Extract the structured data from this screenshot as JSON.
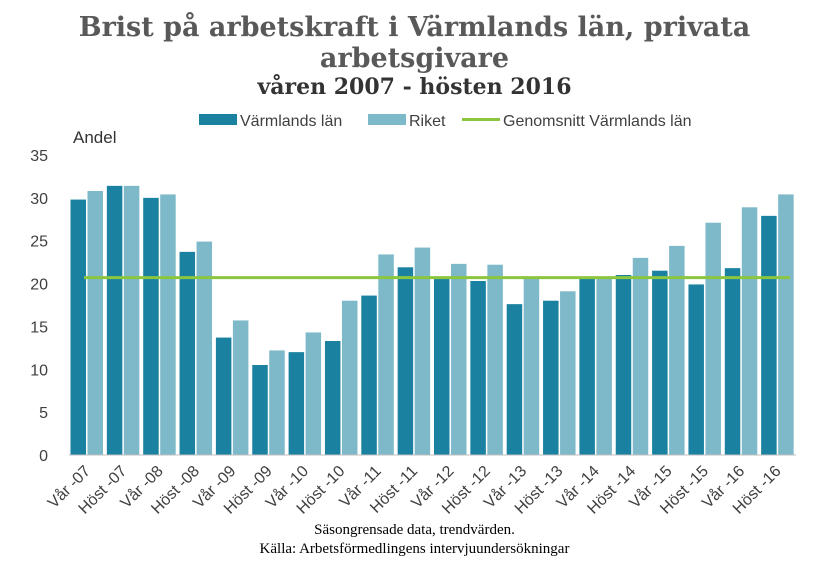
{
  "chart_data": {
    "type": "bar",
    "title": "Brist på arbetskraft i Värmlands län, privata arbetsgivare",
    "subtitle": "våren 2007 - hösten 2016",
    "ylabel": "Andel",
    "ylim": [
      0,
      35
    ],
    "yticks": [
      0,
      5,
      10,
      15,
      20,
      25,
      30,
      35
    ],
    "grid": false,
    "legend_position": "top",
    "categories": [
      "Vår -07",
      "Höst -07",
      "Vår -08",
      "Höst -08",
      "Vår -09",
      "Höst -09",
      "Vår -10",
      "Höst -10",
      "Vår -11",
      "Höst -11",
      "Vår -12",
      "Höst -12",
      "Vår -13",
      "Höst -13",
      "Vår -14",
      "Höst -14",
      "Vår -15",
      "Höst -15",
      "Vår -16",
      "Höst -16"
    ],
    "series": [
      {
        "name": "Värmlands län",
        "color": "#1a82a0",
        "values": [
          29.8,
          31.4,
          30.0,
          23.7,
          13.7,
          10.5,
          12.0,
          13.3,
          18.6,
          21.9,
          20.7,
          20.3,
          17.6,
          18.0,
          20.8,
          21.0,
          21.5,
          19.9,
          21.8,
          27.9
        ]
      },
      {
        "name": "Riket",
        "color": "#7eb9ca",
        "values": [
          30.8,
          31.4,
          30.4,
          24.9,
          15.7,
          12.2,
          14.3,
          18.0,
          23.4,
          24.2,
          22.3,
          22.2,
          20.6,
          19.1,
          20.8,
          23.0,
          24.4,
          27.1,
          28.9,
          30.4
        ]
      }
    ],
    "reference_line": {
      "name": "Genomsnitt Värmlands län",
      "value": 20.7,
      "color": "#8cc63f"
    }
  },
  "footer": {
    "line1": "Säsongrensade data, trendvärden.",
    "line2": "Källa: Arbetsförmedlingens intervjuundersökningar"
  }
}
